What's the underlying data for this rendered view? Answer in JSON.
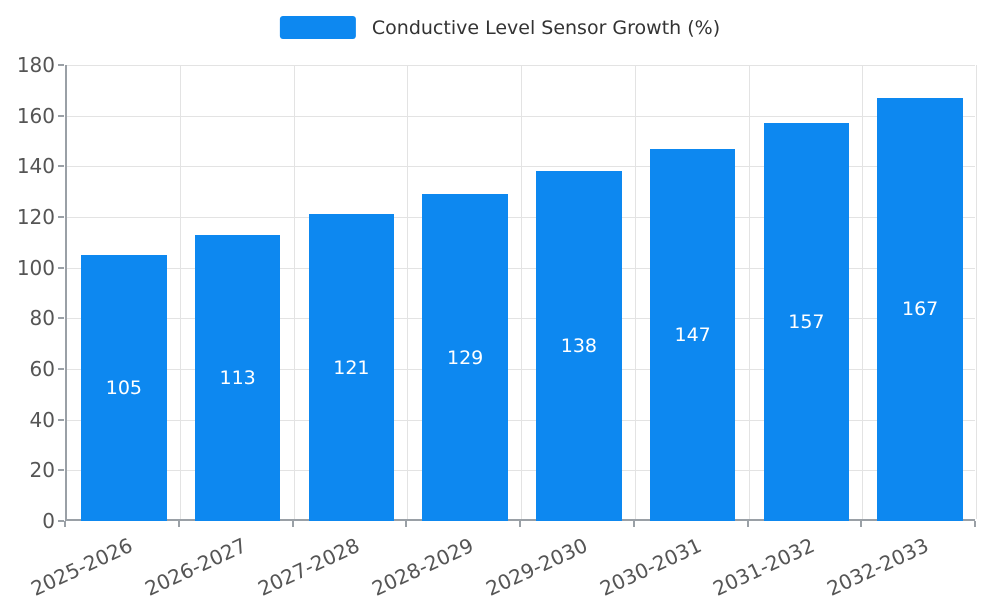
{
  "legend": {
    "label": "Conductive Level Sensor Growth (%)",
    "swatch_color": "#0d88f0"
  },
  "chart_data": {
    "type": "bar",
    "title": "Conductive Level Sensor Growth (%)",
    "categories": [
      "2025-2026",
      "2026-2027",
      "2027-2028",
      "2028-2029",
      "2029-2030",
      "2030-2031",
      "2031-2032",
      "2032-2033"
    ],
    "values": [
      105,
      113,
      121,
      129,
      138,
      147,
      157,
      167
    ],
    "xlabel": "",
    "ylabel": "",
    "ylim": [
      0,
      180
    ],
    "yticks": [
      0,
      20,
      40,
      60,
      80,
      100,
      120,
      140,
      160,
      180
    ],
    "bar_color": "#0d88f0",
    "bar_label_color": "#ffffff",
    "grid": "on",
    "legend_position": "top-center",
    "tick_color": "#555555",
    "gridline_color": "#e3e3e3",
    "axis_color": "#9aa0a6"
  }
}
